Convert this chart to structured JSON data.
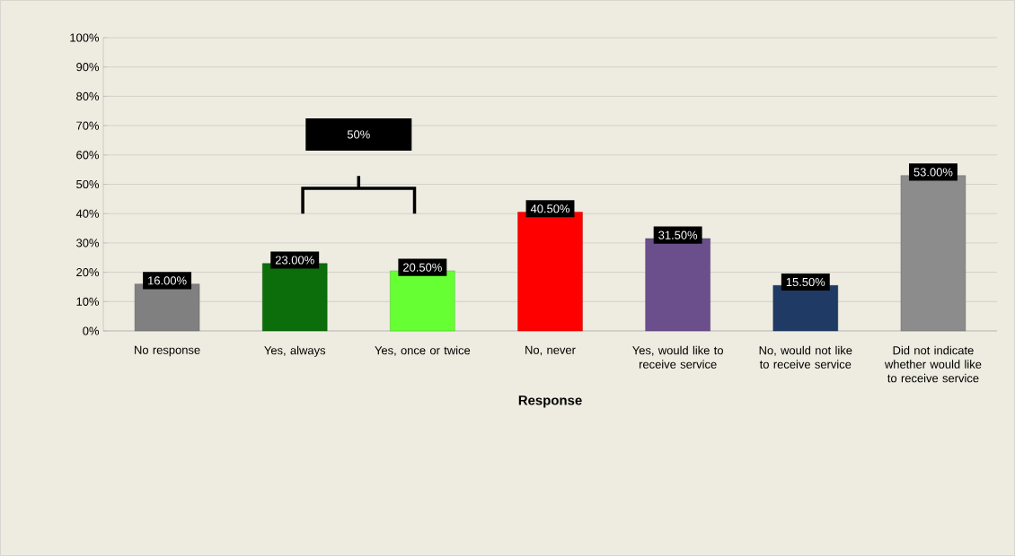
{
  "chart_data": {
    "type": "bar",
    "xlabel": "Response",
    "categories": [
      "No response",
      "Yes, always",
      "Yes, once or twice",
      "No, never",
      "Yes, would like to receive service",
      "No, would not like to receive service",
      "Did not indicate whether would like to receive service"
    ],
    "values": [
      16,
      23,
      20.5,
      40.5,
      31.5,
      15.5,
      53
    ],
    "value_labels": [
      "16.00%",
      "23.00%",
      "20.50%",
      "40.50%",
      "31.50%",
      "15.50%",
      "53.00%"
    ],
    "colors": [
      "#808080",
      "#0b6e0b",
      "#66ff33",
      "#ff0000",
      "#6b4f8c",
      "#1f3a64",
      "#8c8c8c"
    ],
    "ylim": [
      0,
      100
    ],
    "yticks": [
      {
        "value": 0,
        "label": "0%"
      },
      {
        "value": 10,
        "label": "10%"
      },
      {
        "value": 20,
        "label": "20%"
      },
      {
        "value": 30,
        "label": "30%"
      },
      {
        "value": 40,
        "label": "40%"
      },
      {
        "value": 50,
        "label": "50%"
      },
      {
        "value": 60,
        "label": "60%"
      },
      {
        "value": 70,
        "label": "70%"
      },
      {
        "value": 80,
        "label": "80%"
      },
      {
        "value": 90,
        "label": "90%"
      },
      {
        "value": 100,
        "label": "100%"
      }
    ],
    "grid": "y",
    "annotations": [
      "50%"
    ]
  }
}
